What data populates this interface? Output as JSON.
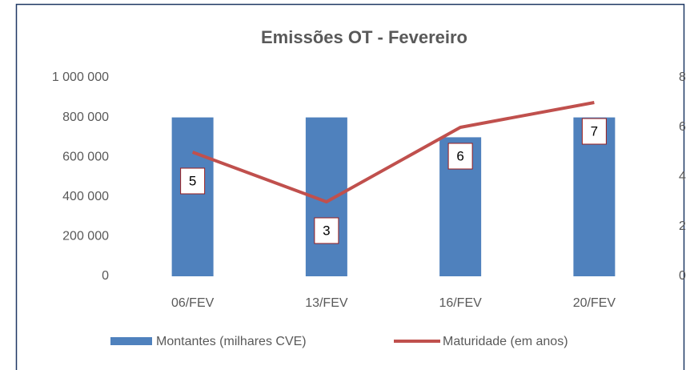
{
  "chart_data": {
    "type": "bar",
    "title": "Emissões OT - Fevereiro",
    "categories": [
      "06/FEV",
      "13/FEV",
      "16/FEV",
      "20/FEV"
    ],
    "series": [
      {
        "name": "Montantes (milhares CVE)",
        "color": "#4f81bd",
        "type": "bar",
        "values": [
          800000,
          800000,
          700000,
          800000
        ]
      },
      {
        "name": "Maturidade (em anos)",
        "color": "#c0504d",
        "type": "line",
        "axis": "y2",
        "data_labels": true,
        "values": [
          5,
          3,
          6,
          7
        ]
      }
    ],
    "ylim": [
      0,
      1000000
    ],
    "yticks": [
      0,
      {
        "value": 200000,
        "label": "200 000"
      },
      {
        "value": 400000,
        "label": "400 000"
      },
      {
        "value": 600000,
        "label": "600 000"
      },
      {
        "value": 800000,
        "label": "800 000"
      },
      {
        "value": 1000000,
        "label": "1 000 000"
      }
    ],
    "y2lim": [
      0,
      8
    ],
    "y2ticks": [
      0,
      2,
      4,
      6,
      8
    ],
    "legend": "bottom",
    "grid": false
  }
}
